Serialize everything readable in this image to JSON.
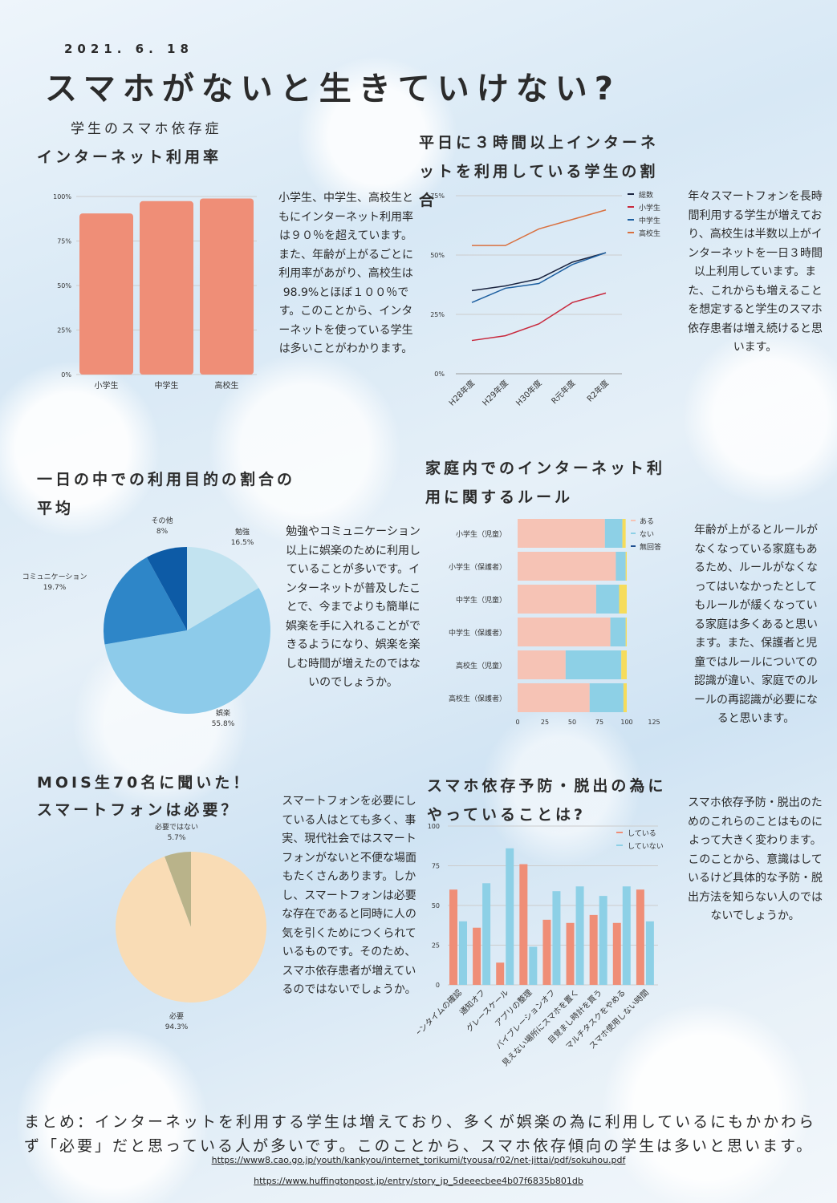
{
  "header": {
    "date": "2021. 6. 18",
    "title": "スマホがないと生きていけない?",
    "subtitle": "学生のスマホ依存症"
  },
  "sections": {
    "s1": {
      "title": "インターネット利用率",
      "text": "小学生、中学生、高校生ともにインターネット利用率は９０％を超えています。また、年齢が上がるごとに利用率があがり、高校生は98.9%とほぼ１００％です。このことから、インターネットを使っている学生は多いことがわかります。"
    },
    "s2": {
      "title": "平日に３時間以上インターネットを利用している学生の割合",
      "text": "年々スマートフォンを長時間利用する学生が増えており、高校生は半数以上がインターネットを一日３時間以上利用しています。また、これからも増えることを想定すると学生のスマホ依存患者は増え続けると思います。"
    },
    "s3": {
      "title": "一日の中での利用目的の割合の平均",
      "text": "勉強やコミュニケーション以上に娯楽のために利用していることが多いです。インターネットが普及したことで、今までよりも簡単に娯楽を手に入れることができるようになり、娯楽を楽しむ時間が増えたのではないのでしょうか。"
    },
    "s4": {
      "title": "家庭内でのインターネット利用に関するルール",
      "text": "年齢が上がるとルールがなくなっている家庭もあるため、ルールがなくなってはいなかったとしてもルールが緩くなっている家庭は多くあると思います。また、保護者と児童ではルールについての認識が違い、家庭でのルールの再認識が必要になると思います。"
    },
    "s5": {
      "title1": "MOIS生70名に聞いた！",
      "title2": "スマートフォンは必要？",
      "text": "スマートフォンを必要にしている人はとても多く、事実、現代社会ではスマートフォンがないと不便な場面もたくさんあります。しかし、スマートフォンは必要な存在であると同時に人の気を引くためにつくられているものです。そのため、スマホ依存患者が増えているのではないでしょうか。"
    },
    "s6": {
      "title": "スマホ依存予防・脱出の為にやっていることは?",
      "text": "スマホ依存予防・脱出のためのこれらのことはものによって大きく変わります。このことから、意識はしているけど具体的な予防・脱出方法を知らない人のではないでしょうか。"
    }
  },
  "footer": {
    "summary": "まとめ：インターネットを利用する学生は増えており、多くが娯楽の為に利用しているにもかかわらず「必要」だと思っている人が多いです。このことから、スマホ依存傾向の学生は多いと思います。",
    "url1": "https://www8.cao.go.jp/youth/kankyou/internet_torikumi/tyousa/r02/net-jittai/pdf/sokuhou.pdf",
    "url2": "https://www.huffingtonpost.jp/entry/story_jp_5deeecbee4b07f6835b801db"
  },
  "chart_data": [
    {
      "id": "usage-rate",
      "type": "bar",
      "categories": [
        "小学生",
        "中学生",
        "高校生"
      ],
      "values": [
        90.5,
        97.4,
        98.9
      ],
      "ylim": [
        0,
        100
      ],
      "yticks": [
        "0%",
        "25%",
        "50%",
        "75%",
        "100%"
      ],
      "color": "#ef8e77"
    },
    {
      "id": "three-hours",
      "type": "line",
      "categories": [
        "H28年度",
        "H29年度",
        "H30年度",
        "R元年度",
        "R2年度"
      ],
      "ylim": [
        0,
        75
      ],
      "yticks": [
        "0%",
        "25%",
        "50%",
        "75%"
      ],
      "series": [
        {
          "name": "総数",
          "values": [
            35,
            37,
            40,
            47,
            51
          ],
          "color": "#1b2440"
        },
        {
          "name": "小学生",
          "values": [
            14,
            16,
            21,
            30,
            34
          ],
          "color": "#c8283c"
        },
        {
          "name": "中学生",
          "values": [
            30,
            36,
            38,
            46,
            51
          ],
          "color": "#1d5fa0"
        },
        {
          "name": "高校生",
          "values": [
            54,
            54,
            61,
            65,
            69
          ],
          "color": "#d9703f"
        }
      ]
    },
    {
      "id": "purpose",
      "type": "pie",
      "slices": [
        {
          "name": "勉強",
          "label": "16.5%",
          "value": 16.5,
          "color": "#c2e3f0"
        },
        {
          "name": "娯楽",
          "label": "55.8%",
          "value": 55.8,
          "color": "#8dcbea"
        },
        {
          "name": "コミュニケーション",
          "label": "19.7%",
          "value": 19.7,
          "color": "#2e86c8"
        },
        {
          "name": "その他",
          "label": "8%",
          "value": 8,
          "color": "#0d5ba6"
        }
      ]
    },
    {
      "id": "home-rules",
      "type": "bar",
      "categories": [
        "小学生（児童）",
        "小学生（保護者）",
        "中学生（児童）",
        "中学生（保護者）",
        "高校生（児童）",
        "高校生（保護者）"
      ],
      "xticks": [
        "0",
        "25",
        "50",
        "75",
        "100",
        "125"
      ],
      "xlim": [
        0,
        125
      ],
      "series": [
        {
          "name": "ある",
          "values": [
            80,
            90,
            72,
            85,
            44,
            66
          ],
          "color": "#f6c3b5"
        },
        {
          "name": "ない",
          "values": [
            16,
            9,
            21,
            14,
            51,
            31
          ],
          "color": "#8dd0e6"
        },
        {
          "name": "無回答",
          "values": [
            3,
            1,
            7,
            1,
            5,
            3
          ],
          "color": "#f6dc5b"
        }
      ],
      "legend_colors_extra": "#1d4e8f"
    },
    {
      "id": "need",
      "type": "pie",
      "slices": [
        {
          "name": "必要ではない",
          "label": "5.7%",
          "value": 5.7,
          "color": "#b9b38a"
        },
        {
          "name": "必要",
          "label": "94.3%",
          "value": 94.3,
          "color": "#f9dcb5"
        }
      ]
    },
    {
      "id": "prevention",
      "type": "bar",
      "categories": [
        "スクリーンタイムの確認",
        "通知オフ",
        "グレースケール",
        "アプリの整理",
        "バイブレーションオフ",
        "見えない場所にスマホを置く",
        "目覚まし時計を買う",
        "マルチタスクをやめる",
        "スマホ使用しない時間"
      ],
      "ylim": [
        0,
        100
      ],
      "yticks": [
        "0",
        "25",
        "50",
        "75",
        "100"
      ],
      "series": [
        {
          "name": "している",
          "values": [
            60,
            36,
            14,
            76,
            41,
            39,
            44,
            39,
            60
          ],
          "color": "#ef8e77"
        },
        {
          "name": "していない",
          "values": [
            40,
            64,
            86,
            24,
            59,
            62,
            56,
            62,
            40
          ],
          "color": "#8dd0e6"
        }
      ]
    }
  ]
}
